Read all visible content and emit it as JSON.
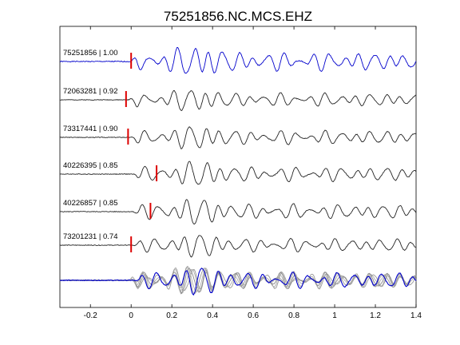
{
  "chart_data": {
    "type": "line",
    "title": "75251856.NC.MCS.EHZ",
    "xlabel": "",
    "ylabel": "",
    "xlim": [
      -0.35,
      1.4
    ],
    "xticks": [
      -0.2,
      0,
      0.2,
      0.4,
      0.6,
      0.8,
      1,
      1.2,
      1.4
    ],
    "xtick_labels": [
      "-0.2",
      "0",
      "0.2",
      "0.4",
      "0.6",
      "0.8",
      "1",
      "1.2",
      "1.4"
    ],
    "grid": false,
    "series": [
      {
        "label": "75251856 | 1.00",
        "pick_time": 0.0,
        "color": "#0000cc",
        "amp": 1.0,
        "noise_seed": 1,
        "shift": 0.0
      },
      {
        "label": "72063281 | 0.92",
        "pick_time": -0.025,
        "color": "#222222",
        "amp": 0.72,
        "noise_seed": 2,
        "shift": -0.01
      },
      {
        "label": "73317441 | 0.90",
        "pick_time": -0.015,
        "color": "#222222",
        "amp": 0.75,
        "noise_seed": 3,
        "shift": 0.0
      },
      {
        "label": "40226395 | 0.85",
        "pick_time": 0.125,
        "color": "#222222",
        "amp": 0.78,
        "noise_seed": 4,
        "shift": 0.01
      },
      {
        "label": "40226857 | 0.85",
        "pick_time": 0.095,
        "color": "#222222",
        "amp": 0.8,
        "noise_seed": 5,
        "shift": 0.005
      },
      {
        "label": "73201231 | 0.74",
        "pick_time": 0.0,
        "color": "#222222",
        "amp": 0.72,
        "noise_seed": 6,
        "shift": 0.0
      }
    ],
    "stack": {
      "colors": [
        "#999999",
        "#aaaaaa",
        "#888888",
        "#b0b0b0",
        "#9a9a9a",
        "#0000cc"
      ]
    },
    "colors": {
      "pick_marker": "#dd0000",
      "axes": "#000000"
    }
  }
}
